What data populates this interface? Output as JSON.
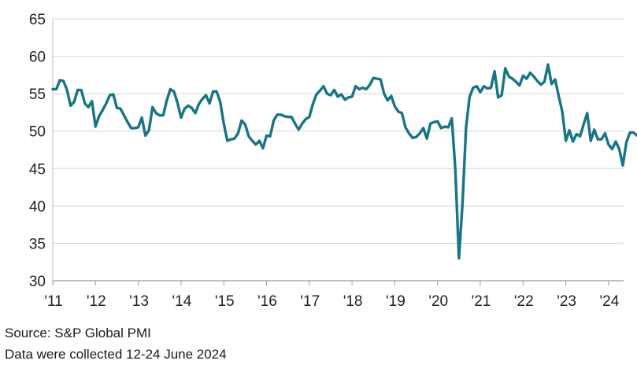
{
  "chart_data": {
    "type": "line",
    "title": "",
    "xlabel": "",
    "ylabel": "",
    "x_start": "2011-01",
    "x_tick_labels": [
      "'11",
      "'12",
      "'13",
      "'14",
      "'15",
      "'16",
      "'17",
      "'18",
      "'19",
      "'20",
      "'21",
      "'22",
      "'23",
      "'24"
    ],
    "y_ticks": [
      30,
      35,
      40,
      45,
      50,
      55,
      60,
      65
    ],
    "ylim": [
      30,
      65
    ],
    "grid": "horizontal",
    "legend": "none",
    "line_color": "#177585",
    "series": [
      {
        "values": [
          55.6,
          55.6,
          56.8,
          56.7,
          55.5,
          53.4,
          53.9,
          55.5,
          55.5,
          53.7,
          53.2,
          54.0,
          50.6,
          52.0,
          52.8,
          53.7,
          54.8,
          54.9,
          53.1,
          53.0,
          52.1,
          51.2,
          50.4,
          50.4,
          50.5,
          51.8,
          49.4,
          50.1,
          53.2,
          52.4,
          52.1,
          52.1,
          54.1,
          55.6,
          55.3,
          53.8,
          51.8,
          53.0,
          53.4,
          53.1,
          52.4,
          53.6,
          54.3,
          54.8,
          53.7,
          55.3,
          55.3,
          53.9,
          51.0,
          48.7,
          48.9,
          49.0,
          49.7,
          51.4,
          50.9,
          49.3,
          48.7,
          48.2,
          48.7,
          47.7,
          49.4,
          49.3,
          51.4,
          52.2,
          52.2,
          52.0,
          51.9,
          51.9,
          51.0,
          50.2,
          51.0,
          51.6,
          51.9,
          53.6,
          54.9,
          55.4,
          56.0,
          55.0,
          54.8,
          55.5,
          54.6,
          54.9,
          54.2,
          54.5,
          54.6,
          56.0,
          55.6,
          55.8,
          55.6,
          56.2,
          57.1,
          57.0,
          56.9,
          55.0,
          54.1,
          54.7,
          53.3,
          52.6,
          52.4,
          50.5,
          49.7,
          49.1,
          49.2,
          49.7,
          50.4,
          49.0,
          51.0,
          51.2,
          51.3,
          50.4,
          50.6,
          50.5,
          51.7,
          44.8,
          33.0,
          40.3,
          50.5,
          54.6,
          55.8,
          56.0,
          55.2,
          56.0,
          55.7,
          55.8,
          58.0,
          54.5,
          54.8,
          58.4,
          57.3,
          57.0,
          56.6,
          56.1,
          57.4,
          57.0,
          57.8,
          57.3,
          56.7,
          56.2,
          56.6,
          58.9,
          56.3,
          56.9,
          54.7,
          52.6,
          48.7,
          50.1,
          48.6,
          49.6,
          49.3,
          50.9,
          52.4,
          48.7,
          50.2,
          48.9,
          48.9,
          49.7,
          48.2,
          47.6,
          48.6,
          47.6,
          45.4,
          48.5,
          49.8,
          49.8,
          49.4,
          49.3,
          49.3
        ]
      }
    ]
  },
  "notes": {
    "source": "Source: S&P Global PMI",
    "collected": "Data were collected 12-24 June 2024"
  }
}
